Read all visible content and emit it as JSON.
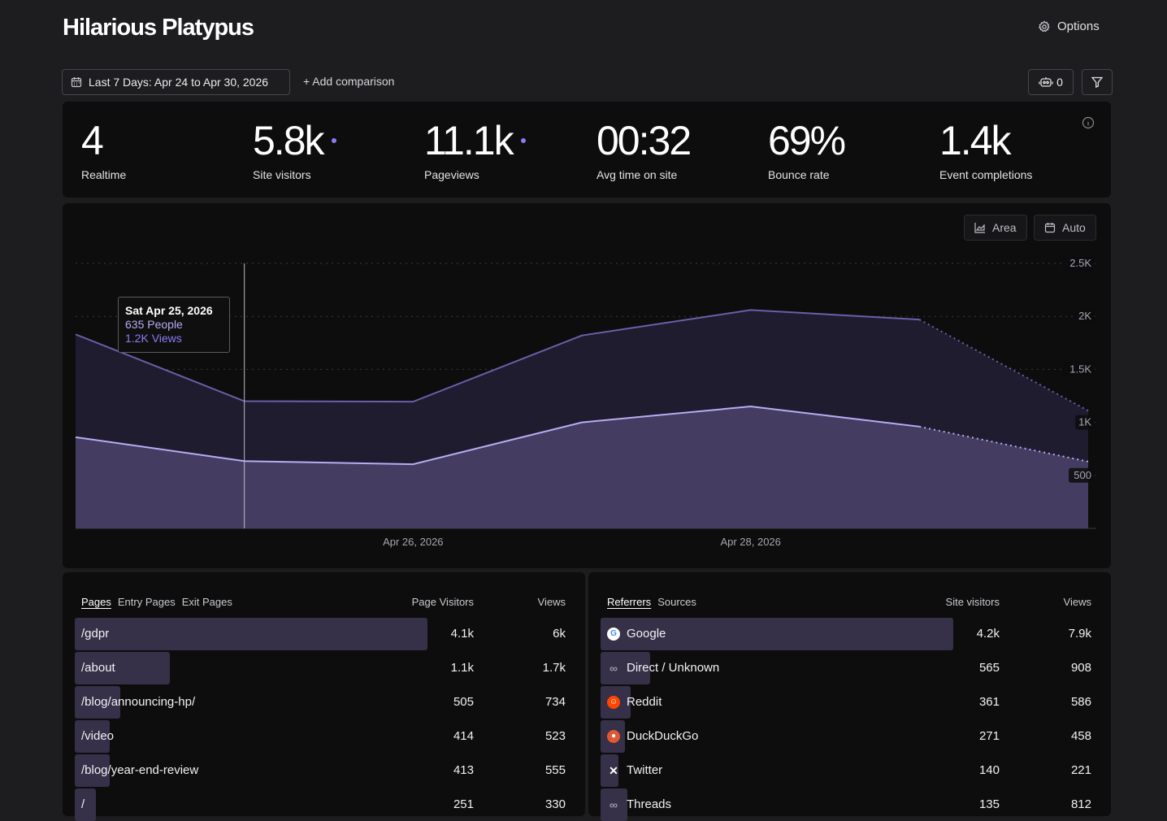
{
  "header": {
    "title": "Hilarious Platypus",
    "options_label": "Options"
  },
  "toolbar": {
    "date_range": "Last 7 Days: Apr 24 to Apr 30, 2026",
    "add_comparison": "+ Add comparison",
    "bot_count": "0"
  },
  "stats": [
    {
      "value": "4",
      "label": "Realtime"
    },
    {
      "value": "5.8k",
      "label": "Site visitors"
    },
    {
      "value": "11.1k",
      "label": "Pageviews"
    },
    {
      "value": "00:32",
      "label": "Avg time on site"
    },
    {
      "value": "69%",
      "label": "Bounce rate"
    },
    {
      "value": "1.4k",
      "label": "Event completions"
    }
  ],
  "chart_controls": {
    "area_label": "Area",
    "auto_label": "Auto"
  },
  "tooltip": {
    "date": "Sat Apr 25, 2026",
    "people": "635 People",
    "views": "1.2K Views"
  },
  "chart_data": {
    "type": "area",
    "x": [
      "Apr 24, 2026",
      "Apr 25, 2026",
      "Apr 26, 2026",
      "Apr 27, 2026",
      "Apr 28, 2026",
      "Apr 29, 2026",
      "Apr 30, 2026"
    ],
    "series": [
      {
        "name": "Views",
        "values": [
          1830,
          1200,
          1195,
          1820,
          2060,
          1970,
          1110
        ],
        "color": "#6b5fa8"
      },
      {
        "name": "People",
        "values": [
          860,
          635,
          605,
          1000,
          1150,
          960,
          630
        ],
        "color": "#b7acf2"
      }
    ],
    "dotted_from_index": 5,
    "ylim": [
      0,
      2500
    ],
    "yticks": [
      {
        "value": 2500,
        "label": "2.5K"
      },
      {
        "value": 2000,
        "label": "2K"
      },
      {
        "value": 1500,
        "label": "1.5K"
      },
      {
        "value": 1000,
        "label": "1K"
      },
      {
        "value": 500,
        "label": "500"
      }
    ],
    "xticks": [
      {
        "index": 2,
        "label": "Apr 26, 2026"
      },
      {
        "index": 4,
        "label": "Apr 28, 2026"
      }
    ],
    "highlight_index": 1,
    "grid": true
  },
  "pages_table": {
    "tabs": [
      "Pages",
      "Entry Pages",
      "Exit Pages"
    ],
    "col_visitors": "Page Visitors",
    "col_views": "Views",
    "rows": [
      {
        "label": "/gdpr",
        "visitors": "4.1k",
        "views": "6k",
        "share": 1.0
      },
      {
        "label": "/about",
        "visitors": "1.1k",
        "views": "1.7k",
        "share": 0.27
      },
      {
        "label": "/blog/announcing-hp/",
        "visitors": "505",
        "views": "734",
        "share": 0.13
      },
      {
        "label": "/video",
        "visitors": "414",
        "views": "523",
        "share": 0.1
      },
      {
        "label": "/blog/year-end-review",
        "visitors": "413",
        "views": "555",
        "share": 0.1
      },
      {
        "label": "/",
        "visitors": "251",
        "views": "330",
        "share": 0.06
      }
    ]
  },
  "referrers_table": {
    "tabs": [
      "Referrers",
      "Sources"
    ],
    "col_visitors": "Site visitors",
    "col_views": "Views",
    "rows": [
      {
        "label": "Google",
        "icon": "google-icon",
        "visitors": "4.2k",
        "views": "7.9k",
        "share": 1.0
      },
      {
        "label": "Direct / Unknown",
        "icon": "link-icon",
        "visitors": "565",
        "views": "908",
        "share": 0.14
      },
      {
        "label": "Reddit",
        "icon": "reddit-icon",
        "visitors": "361",
        "views": "586",
        "share": 0.085
      },
      {
        "label": "DuckDuckGo",
        "icon": "duckduckgo-icon",
        "visitors": "271",
        "views": "458",
        "share": 0.07
      },
      {
        "label": "Twitter",
        "icon": "x-icon",
        "visitors": "140",
        "views": "221",
        "share": 0.03
      },
      {
        "label": "Threads",
        "icon": "link-icon",
        "visitors": "135",
        "views": "812",
        "share": 0.075
      }
    ]
  }
}
